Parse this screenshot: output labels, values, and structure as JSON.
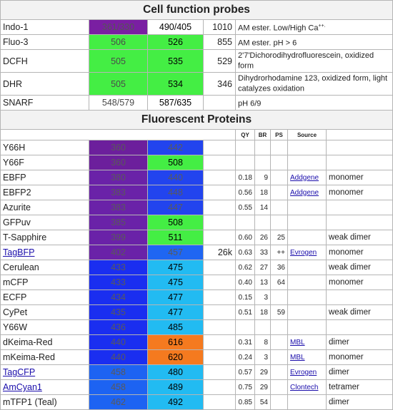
{
  "probes_title": "Cell function probes",
  "probes": [
    {
      "name": "Indo-1",
      "ex": "361/330",
      "ex_color": "#7a1fa2",
      "em": "490/405",
      "em_color": "#ffffff",
      "mw": "1010",
      "note": "AM ester. Low/High Ca",
      "note_sup": "++."
    },
    {
      "name": "Fluo-3",
      "ex": "506",
      "ex_color": "#44ee44",
      "em": "526",
      "em_color": "#44ee44",
      "mw": "855",
      "note": "AM ester. pH > 6",
      "note_sup": ""
    },
    {
      "name": "DCFH",
      "ex": "505",
      "ex_color": "#44ee44",
      "em": "535",
      "em_color": "#44ee44",
      "mw": "529",
      "note": "2'7'Dichorodihydrofluorescein, oxidized form",
      "note_sup": ""
    },
    {
      "name": "DHR",
      "ex": "505",
      "ex_color": "#44ee44",
      "em": "534",
      "em_color": "#44ee44",
      "mw": "346",
      "note": "Dihydrorhodamine 123, oxidized form, light catalyzes oxidation",
      "note_sup": ""
    },
    {
      "name": "SNARF",
      "ex": "548/579",
      "ex_color": "#ffffff",
      "em": "587/635",
      "em_color": "#ffffff",
      "mw": "",
      "note": "pH 6/9",
      "note_sup": ""
    }
  ],
  "proteins_title": "Fluorescent Proteins",
  "protein_headers": {
    "qy": "QY",
    "br": "BR",
    "ps": "PS",
    "source": "Source"
  },
  "proteins": [
    {
      "name": "Y66H",
      "link": false,
      "ex": "360",
      "ex_color": "#6c1f9c",
      "em": "442",
      "em_color": "#2244ee",
      "mw": "",
      "qy": "",
      "br": "",
      "ps": "",
      "source": "",
      "source_link": false,
      "state": ""
    },
    {
      "name": "Y66F",
      "link": false,
      "ex": "360",
      "ex_color": "#6c1f9c",
      "em": "508",
      "em_color": "#44ee44",
      "mw": "",
      "qy": "",
      "br": "",
      "ps": "",
      "source": "",
      "source_link": false,
      "state": ""
    },
    {
      "name": "EBFP",
      "link": false,
      "ex": "380",
      "ex_color": "#6a22a8",
      "em": "440",
      "em_color": "#2244ee",
      "mw": "",
      "qy": "0.18",
      "br": "9",
      "ps": "",
      "source": "Addgene",
      "source_link": true,
      "state": "monomer"
    },
    {
      "name": "EBFP2",
      "link": false,
      "ex": "383",
      "ex_color": "#6a22a8",
      "em": "448",
      "em_color": "#2244ee",
      "mw": "",
      "qy": "0.56",
      "br": "18",
      "ps": "",
      "source": "Addgene",
      "source_link": true,
      "state": "monomer"
    },
    {
      "name": "Azurite",
      "link": false,
      "ex": "383",
      "ex_color": "#6a22a8",
      "em": "447",
      "em_color": "#2244ee",
      "mw": "",
      "qy": "0.55",
      "br": "14",
      "ps": "",
      "source": "",
      "source_link": false,
      "state": ""
    },
    {
      "name": "GFPuv",
      "link": false,
      "ex": "385",
      "ex_color": "#6a22a8",
      "em": "508",
      "em_color": "#44ee44",
      "mw": "",
      "qy": "",
      "br": "",
      "ps": "",
      "source": "",
      "source_link": false,
      "state": ""
    },
    {
      "name": "T-Sapphire",
      "link": false,
      "ex": "399",
      "ex_color": "#6a22a8",
      "em": "511",
      "em_color": "#44ee44",
      "mw": "",
      "qy": "0.60",
      "br": "26",
      "ps": "25",
      "source": "",
      "source_link": false,
      "state": "weak dimer"
    },
    {
      "name": "TagBFP",
      "link": true,
      "ex": "402",
      "ex_color": "#6a22a8",
      "em": "457",
      "em_color": "#1f66f2",
      "mw": "26k",
      "qy": "0.63",
      "br": "33",
      "ps": "++",
      "source": "Evrogen",
      "source_link": true,
      "state": "monomer"
    },
    {
      "name": "Cerulean",
      "link": false,
      "ex": "433",
      "ex_color": "#1a2ef0",
      "em": "475",
      "em_color": "#22bbf2",
      "mw": "",
      "qy": "0.62",
      "br": "27",
      "ps": "36",
      "source": "",
      "source_link": false,
      "state": "weak dimer"
    },
    {
      "name": "mCFP",
      "link": false,
      "ex": "433",
      "ex_color": "#1a2ef0",
      "em": "475",
      "em_color": "#22bbf2",
      "mw": "",
      "qy": "0.40",
      "br": "13",
      "ps": "64",
      "source": "",
      "source_link": false,
      "state": "monomer"
    },
    {
      "name": "ECFP",
      "link": false,
      "ex": "434",
      "ex_color": "#1a2ef0",
      "em": "477",
      "em_color": "#22bbf2",
      "mw": "",
      "qy": "0.15",
      "br": "3",
      "ps": "",
      "source": "",
      "source_link": false,
      "state": ""
    },
    {
      "name": "CyPet",
      "link": false,
      "ex": "435",
      "ex_color": "#1a2ef0",
      "em": "477",
      "em_color": "#22bbf2",
      "mw": "",
      "qy": "0.51",
      "br": "18",
      "ps": "59",
      "source": "",
      "source_link": false,
      "state": "weak dimer"
    },
    {
      "name": "Y66W",
      "link": false,
      "ex": "436",
      "ex_color": "#1a2ef0",
      "em": "485",
      "em_color": "#22bbf2",
      "mw": "",
      "qy": "",
      "br": "",
      "ps": "",
      "source": "",
      "source_link": false,
      "state": ""
    },
    {
      "name": "dKeima-Red",
      "link": false,
      "ex": "440",
      "ex_color": "#1a2ef0",
      "em": "616",
      "em_color": "#f57a1f",
      "mw": "",
      "qy": "0.31",
      "br": "8",
      "ps": "",
      "source": "MBL",
      "source_link": true,
      "state": "dimer"
    },
    {
      "name": "mKeima-Red",
      "link": false,
      "ex": "440",
      "ex_color": "#1a2ef0",
      "em": "620",
      "em_color": "#f57a1f",
      "mw": "",
      "qy": "0.24",
      "br": "3",
      "ps": "",
      "source": "MBL",
      "source_link": true,
      "state": "monomer"
    },
    {
      "name": "TagCFP",
      "link": true,
      "ex": "458",
      "ex_color": "#1d63f2",
      "em": "480",
      "em_color": "#22bbf2",
      "mw": "",
      "qy": "0.57",
      "br": "29",
      "ps": "",
      "source": "Evrogen",
      "source_link": true,
      "state": "dimer"
    },
    {
      "name": "AmCyan1",
      "link": true,
      "ex": "458",
      "ex_color": "#1d63f2",
      "em": "489",
      "em_color": "#22bbf2",
      "mw": "",
      "qy": "0.75",
      "br": "29",
      "ps": "",
      "source": "Clontech",
      "source_link": true,
      "state": "tetramer"
    },
    {
      "name": "mTFP1 (Teal)",
      "link": false,
      "ex": "462",
      "ex_color": "#1d63f2",
      "em": "492",
      "em_color": "#22bbf2",
      "mw": "",
      "qy": "0.85",
      "br": "54",
      "ps": "",
      "source": "",
      "source_link": false,
      "state": "dimer"
    }
  ]
}
